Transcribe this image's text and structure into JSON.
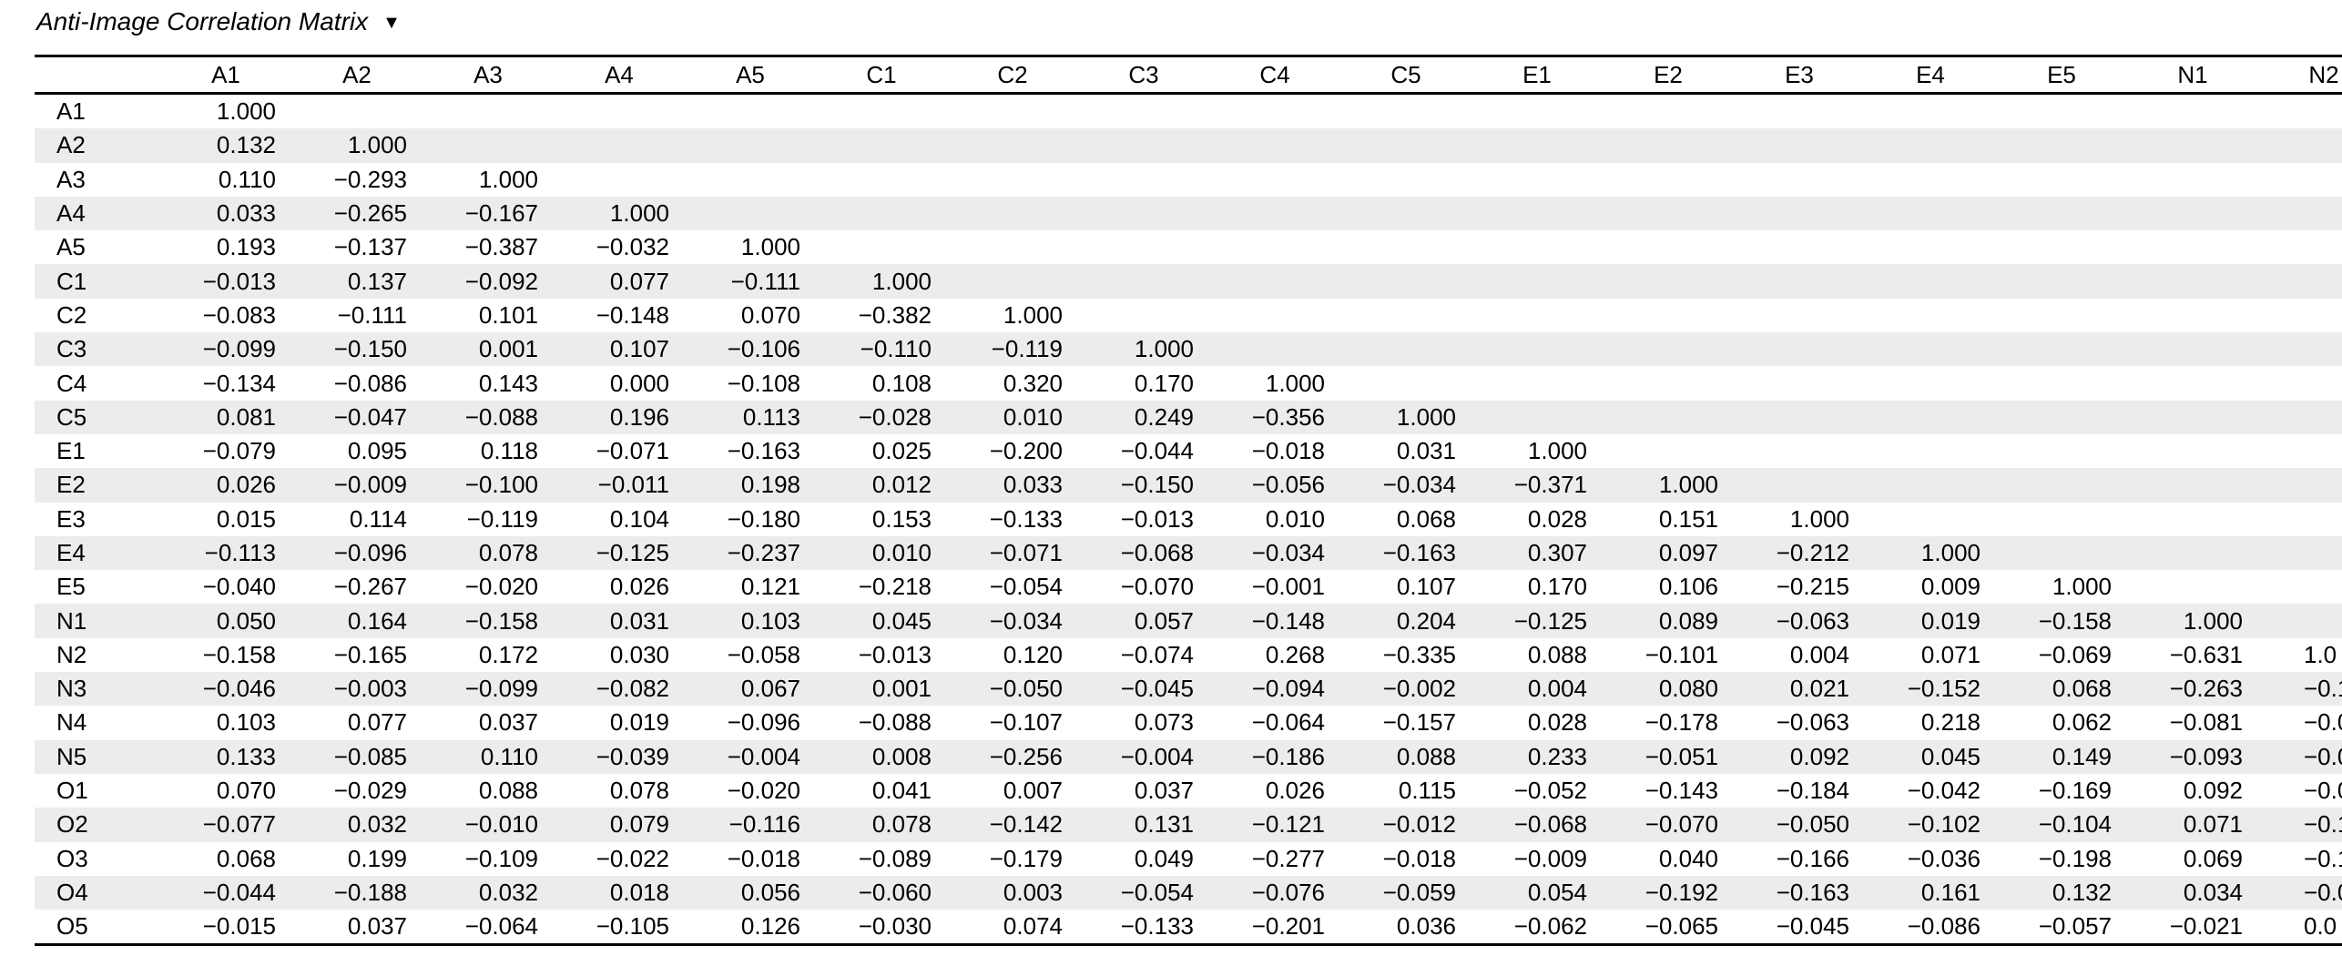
{
  "title": "Anti-Image Correlation Matrix",
  "collapse_icon": "▼",
  "colors": {
    "background": "#ffffff",
    "text": "#000000",
    "rule": "#000000",
    "row_stripe": "#ececec"
  },
  "table": {
    "column_headers": [
      "A1",
      "A2",
      "A3",
      "A4",
      "A5",
      "C1",
      "C2",
      "C3",
      "C4",
      "C5",
      "E1",
      "E2",
      "E3",
      "E4",
      "E5",
      "N1",
      "N2"
    ],
    "last_column_clipped": true,
    "rows": [
      {
        "label": "A1",
        "values": [
          "1.000"
        ]
      },
      {
        "label": "A2",
        "values": [
          "0.132",
          "1.000"
        ]
      },
      {
        "label": "A3",
        "values": [
          "0.110",
          "−0.293",
          "1.000"
        ]
      },
      {
        "label": "A4",
        "values": [
          "0.033",
          "−0.265",
          "−0.167",
          "1.000"
        ]
      },
      {
        "label": "A5",
        "values": [
          "0.193",
          "−0.137",
          "−0.387",
          "−0.032",
          "1.000"
        ]
      },
      {
        "label": "C1",
        "values": [
          "−0.013",
          "0.137",
          "−0.092",
          "0.077",
          "−0.111",
          "1.000"
        ]
      },
      {
        "label": "C2",
        "values": [
          "−0.083",
          "−0.111",
          "0.101",
          "−0.148",
          "0.070",
          "−0.382",
          "1.000"
        ]
      },
      {
        "label": "C3",
        "values": [
          "−0.099",
          "−0.150",
          "0.001",
          "0.107",
          "−0.106",
          "−0.110",
          "−0.119",
          "1.000"
        ]
      },
      {
        "label": "C4",
        "values": [
          "−0.134",
          "−0.086",
          "0.143",
          "0.000",
          "−0.108",
          "0.108",
          "0.320",
          "0.170",
          "1.000"
        ]
      },
      {
        "label": "C5",
        "values": [
          "0.081",
          "−0.047",
          "−0.088",
          "0.196",
          "0.113",
          "−0.028",
          "0.010",
          "0.249",
          "−0.356",
          "1.000"
        ]
      },
      {
        "label": "E1",
        "values": [
          "−0.079",
          "0.095",
          "0.118",
          "−0.071",
          "−0.163",
          "0.025",
          "−0.200",
          "−0.044",
          "−0.018",
          "0.031",
          "1.000"
        ]
      },
      {
        "label": "E2",
        "values": [
          "0.026",
          "−0.009",
          "−0.100",
          "−0.011",
          "0.198",
          "0.012",
          "0.033",
          "−0.150",
          "−0.056",
          "−0.034",
          "−0.371",
          "1.000"
        ]
      },
      {
        "label": "E3",
        "values": [
          "0.015",
          "0.114",
          "−0.119",
          "0.104",
          "−0.180",
          "0.153",
          "−0.133",
          "−0.013",
          "0.010",
          "0.068",
          "0.028",
          "0.151",
          "1.000"
        ]
      },
      {
        "label": "E4",
        "values": [
          "−0.113",
          "−0.096",
          "0.078",
          "−0.125",
          "−0.237",
          "0.010",
          "−0.071",
          "−0.068",
          "−0.034",
          "−0.163",
          "0.307",
          "0.097",
          "−0.212",
          "1.000"
        ]
      },
      {
        "label": "E5",
        "values": [
          "−0.040",
          "−0.267",
          "−0.020",
          "0.026",
          "0.121",
          "−0.218",
          "−0.054",
          "−0.070",
          "−0.001",
          "0.107",
          "0.170",
          "0.106",
          "−0.215",
          "0.009",
          "1.000"
        ]
      },
      {
        "label": "N1",
        "values": [
          "0.050",
          "0.164",
          "−0.158",
          "0.031",
          "0.103",
          "0.045",
          "−0.034",
          "0.057",
          "−0.148",
          "0.204",
          "−0.125",
          "0.089",
          "−0.063",
          "0.019",
          "−0.158",
          "1.000"
        ]
      },
      {
        "label": "N2",
        "values": [
          "−0.158",
          "−0.165",
          "0.172",
          "0.030",
          "−0.058",
          "−0.013",
          "0.120",
          "−0.074",
          "0.268",
          "−0.335",
          "0.088",
          "−0.101",
          "0.004",
          "0.071",
          "−0.069",
          "−0.631",
          "1.0"
        ]
      },
      {
        "label": "N3",
        "values": [
          "−0.046",
          "−0.003",
          "−0.099",
          "−0.082",
          "0.067",
          "0.001",
          "−0.050",
          "−0.045",
          "−0.094",
          "−0.002",
          "0.004",
          "0.080",
          "0.021",
          "−0.152",
          "0.068",
          "−0.263",
          "−0.1"
        ]
      },
      {
        "label": "N4",
        "values": [
          "0.103",
          "0.077",
          "0.037",
          "0.019",
          "−0.096",
          "−0.088",
          "−0.107",
          "0.073",
          "−0.064",
          "−0.157",
          "0.028",
          "−0.178",
          "−0.063",
          "0.218",
          "0.062",
          "−0.081",
          "−0.0"
        ]
      },
      {
        "label": "N5",
        "values": [
          "0.133",
          "−0.085",
          "0.110",
          "−0.039",
          "−0.004",
          "0.008",
          "−0.256",
          "−0.004",
          "−0.186",
          "0.088",
          "0.233",
          "−0.051",
          "0.092",
          "0.045",
          "0.149",
          "−0.093",
          "−0.0"
        ]
      },
      {
        "label": "O1",
        "values": [
          "0.070",
          "−0.029",
          "0.088",
          "0.078",
          "−0.020",
          "0.041",
          "0.007",
          "0.037",
          "0.026",
          "0.115",
          "−0.052",
          "−0.143",
          "−0.184",
          "−0.042",
          "−0.169",
          "0.092",
          "−0.0"
        ]
      },
      {
        "label": "O2",
        "values": [
          "−0.077",
          "0.032",
          "−0.010",
          "0.079",
          "−0.116",
          "0.078",
          "−0.142",
          "0.131",
          "−0.121",
          "−0.012",
          "−0.068",
          "−0.070",
          "−0.050",
          "−0.102",
          "−0.104",
          "0.071",
          "−0.1"
        ]
      },
      {
        "label": "O3",
        "values": [
          "0.068",
          "0.199",
          "−0.109",
          "−0.022",
          "−0.018",
          "−0.089",
          "−0.179",
          "0.049",
          "−0.277",
          "−0.018",
          "−0.009",
          "0.040",
          "−0.166",
          "−0.036",
          "−0.198",
          "0.069",
          "−0.1"
        ]
      },
      {
        "label": "O4",
        "values": [
          "−0.044",
          "−0.188",
          "0.032",
          "0.018",
          "0.056",
          "−0.060",
          "0.003",
          "−0.054",
          "−0.076",
          "−0.059",
          "0.054",
          "−0.192",
          "−0.163",
          "0.161",
          "0.132",
          "0.034",
          "−0.0"
        ]
      },
      {
        "label": "O5",
        "values": [
          "−0.015",
          "0.037",
          "−0.064",
          "−0.105",
          "0.126",
          "−0.030",
          "0.074",
          "−0.133",
          "−0.201",
          "0.036",
          "−0.062",
          "−0.065",
          "−0.045",
          "−0.086",
          "−0.057",
          "−0.021",
          "0.0"
        ]
      }
    ]
  }
}
